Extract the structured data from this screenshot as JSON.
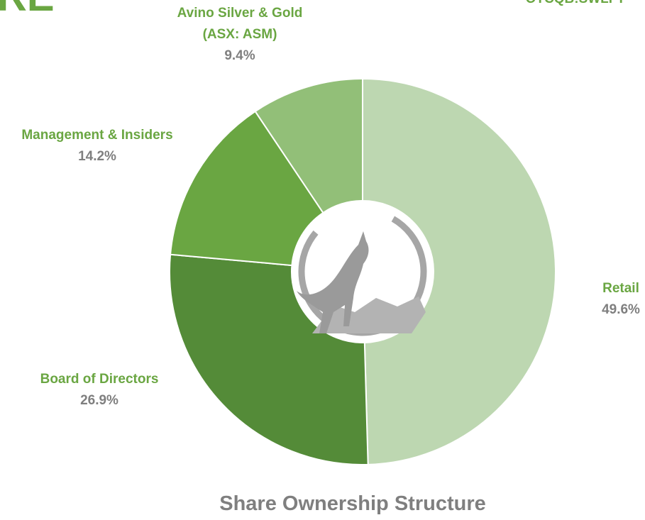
{
  "corner_left": "RE",
  "corner_right": "OTCQB:SWLFT",
  "chart_data": {
    "type": "donut",
    "title": "Share Ownership Structure",
    "categories": [
      "Retail",
      "Board of Directors",
      "Management & Insiders",
      "Avino Silver & Gold\n(ASX: ASM)"
    ],
    "values": [
      49.6,
      26.9,
      14.2,
      9.4
    ],
    "value_labels": [
      "49.6%",
      "26.9%",
      "14.2%",
      "9.4%"
    ],
    "colors": [
      "#bdd7b1",
      "#548b38",
      "#6aa642",
      "#92bf78"
    ]
  }
}
